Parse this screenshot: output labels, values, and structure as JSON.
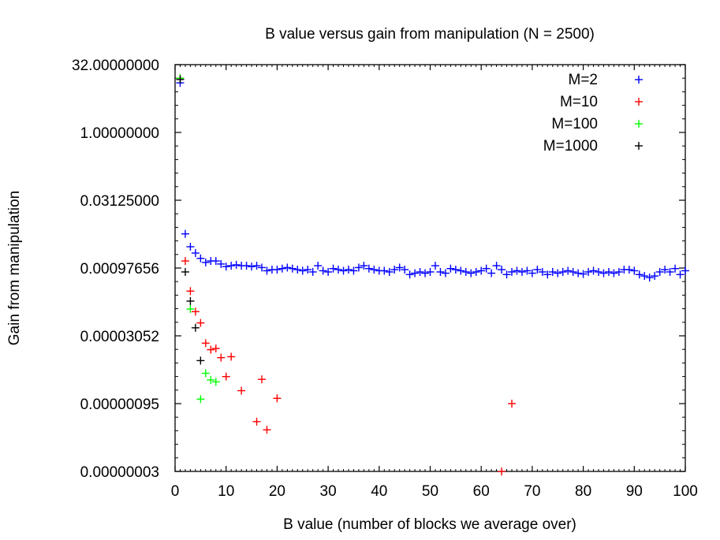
{
  "chart_data": {
    "type": "scatter",
    "title": "B value versus gain from manipulation (N = 2500)",
    "xlabel": "B value (number of blocks we average over)",
    "ylabel": "Gain from manipulation",
    "xlim": [
      0,
      100
    ],
    "yscale": "log2",
    "ylim": [
      2.98e-08,
      32
    ],
    "x_ticks": [
      0,
      10,
      20,
      30,
      40,
      50,
      60,
      70,
      80,
      90,
      100
    ],
    "x_tick_labels": [
      "0",
      "10",
      "20",
      "30",
      "40",
      "50",
      "60",
      "70",
      "80",
      "90",
      "100"
    ],
    "y_ticks": [
      2.98e-08,
      9.54e-07,
      3.052e-05,
      0.00097656,
      0.03125,
      1,
      32
    ],
    "y_tick_labels": [
      "0.00000003",
      "0.00000095",
      "0.00003052",
      "0.00097656",
      "0.03125000",
      "1.00000000",
      "32.00000000"
    ],
    "legend_position": "top-right",
    "series": [
      {
        "name": "M=2",
        "color": "#0000ff",
        "marker": "plus",
        "points": [
          [
            1,
            12.6
          ],
          [
            2,
            0.0056
          ],
          [
            3,
            0.0029
          ],
          [
            4,
            0.0021
          ],
          [
            5,
            0.0016
          ],
          [
            6,
            0.0013
          ],
          [
            7,
            0.0014
          ],
          [
            8,
            0.0014
          ],
          [
            9,
            0.0012
          ],
          [
            10,
            0.00105
          ],
          [
            11,
            0.0011
          ],
          [
            12,
            0.00115
          ],
          [
            13,
            0.0011
          ],
          [
            14,
            0.0011
          ],
          [
            15,
            0.00105
          ],
          [
            16,
            0.0011
          ],
          [
            17,
            0.001
          ],
          [
            18,
            0.00085
          ],
          [
            19,
            0.0009
          ],
          [
            20,
            0.0009
          ],
          [
            21,
            0.00095
          ],
          [
            22,
            0.001
          ],
          [
            23,
            0.00095
          ],
          [
            24,
            0.0009
          ],
          [
            25,
            0.00085
          ],
          [
            26,
            0.0009
          ],
          [
            27,
            0.0008
          ],
          [
            28,
            0.0011
          ],
          [
            29,
            0.00085
          ],
          [
            30,
            0.0008
          ],
          [
            31,
            0.00095
          ],
          [
            32,
            0.0009
          ],
          [
            33,
            0.00085
          ],
          [
            34,
            0.0009
          ],
          [
            35,
            0.00085
          ],
          [
            36,
            0.001
          ],
          [
            37,
            0.0011
          ],
          [
            38,
            0.00095
          ],
          [
            39,
            0.0009
          ],
          [
            40,
            0.00085
          ],
          [
            41,
            0.00085
          ],
          [
            42,
            0.0008
          ],
          [
            43,
            0.0009
          ],
          [
            44,
            0.001
          ],
          [
            45,
            0.0009
          ],
          [
            46,
            0.0007
          ],
          [
            47,
            0.00075
          ],
          [
            48,
            0.0008
          ],
          [
            49,
            0.00075
          ],
          [
            50,
            0.0008
          ],
          [
            51,
            0.0011
          ],
          [
            52,
            0.0008
          ],
          [
            53,
            0.00075
          ],
          [
            54,
            0.00095
          ],
          [
            55,
            0.0009
          ],
          [
            56,
            0.00085
          ],
          [
            57,
            0.0008
          ],
          [
            58,
            0.00075
          ],
          [
            59,
            0.0008
          ],
          [
            60,
            0.00085
          ],
          [
            61,
            0.00095
          ],
          [
            62,
            0.00075
          ],
          [
            63,
            0.0011
          ],
          [
            64,
            0.0009
          ],
          [
            65,
            0.0007
          ],
          [
            66,
            0.0008
          ],
          [
            67,
            0.00085
          ],
          [
            68,
            0.0008
          ],
          [
            69,
            0.00085
          ],
          [
            70,
            0.00075
          ],
          [
            71,
            0.0009
          ],
          [
            72,
            0.0008
          ],
          [
            73,
            0.0007
          ],
          [
            74,
            0.0008
          ],
          [
            75,
            0.00075
          ],
          [
            76,
            0.0008
          ],
          [
            77,
            0.00085
          ],
          [
            78,
            0.0008
          ],
          [
            79,
            0.00075
          ],
          [
            80,
            0.00072
          ],
          [
            81,
            0.0008
          ],
          [
            82,
            0.00085
          ],
          [
            83,
            0.0008
          ],
          [
            84,
            0.00075
          ],
          [
            85,
            0.0008
          ],
          [
            86,
            0.00075
          ],
          [
            87,
            0.0008
          ],
          [
            88,
            0.0009
          ],
          [
            89,
            0.0009
          ],
          [
            90,
            0.00085
          ],
          [
            91,
            0.0007
          ],
          [
            92,
            0.00065
          ],
          [
            93,
            0.0006
          ],
          [
            94,
            0.00065
          ],
          [
            95,
            0.0008
          ],
          [
            96,
            0.0009
          ],
          [
            97,
            0.0008
          ],
          [
            98,
            0.00095
          ],
          [
            99,
            0.0007
          ],
          [
            100,
            0.00085
          ]
        ]
      },
      {
        "name": "M=10",
        "color": "#ff0000",
        "marker": "plus",
        "points": [
          [
            1,
            16
          ],
          [
            2,
            0.0014
          ],
          [
            3,
            0.0003
          ],
          [
            4,
            0.000105
          ],
          [
            5,
            5.9e-05
          ],
          [
            6,
            2.1e-05
          ],
          [
            7,
            1.5e-05
          ],
          [
            8,
            1.6e-05
          ],
          [
            9,
            1e-05
          ],
          [
            10,
            3.8e-06
          ],
          [
            11,
            1.05e-05
          ],
          [
            13,
            1.85e-06
          ],
          [
            16,
            3.8e-07
          ],
          [
            17,
            3.3e-06
          ],
          [
            18,
            2.5e-07
          ],
          [
            20,
            1.25e-06
          ],
          [
            64,
            2.98e-08
          ],
          [
            66,
            9.54e-07
          ]
        ]
      },
      {
        "name": "M=100",
        "color": "#00ff00",
        "marker": "plus",
        "points": [
          [
            1,
            16
          ],
          [
            3,
            0.00012
          ],
          [
            5,
            1.2e-06
          ],
          [
            6,
            4.5e-06
          ],
          [
            7,
            3.2e-06
          ],
          [
            8,
            2.9e-06
          ]
        ]
      },
      {
        "name": "M=1000",
        "color": "#000000",
        "marker": "plus",
        "points": [
          [
            1,
            15
          ],
          [
            2,
            0.0008
          ],
          [
            3,
            0.00018
          ],
          [
            4,
            4.6e-05
          ],
          [
            5,
            8.6e-06
          ]
        ]
      }
    ]
  }
}
